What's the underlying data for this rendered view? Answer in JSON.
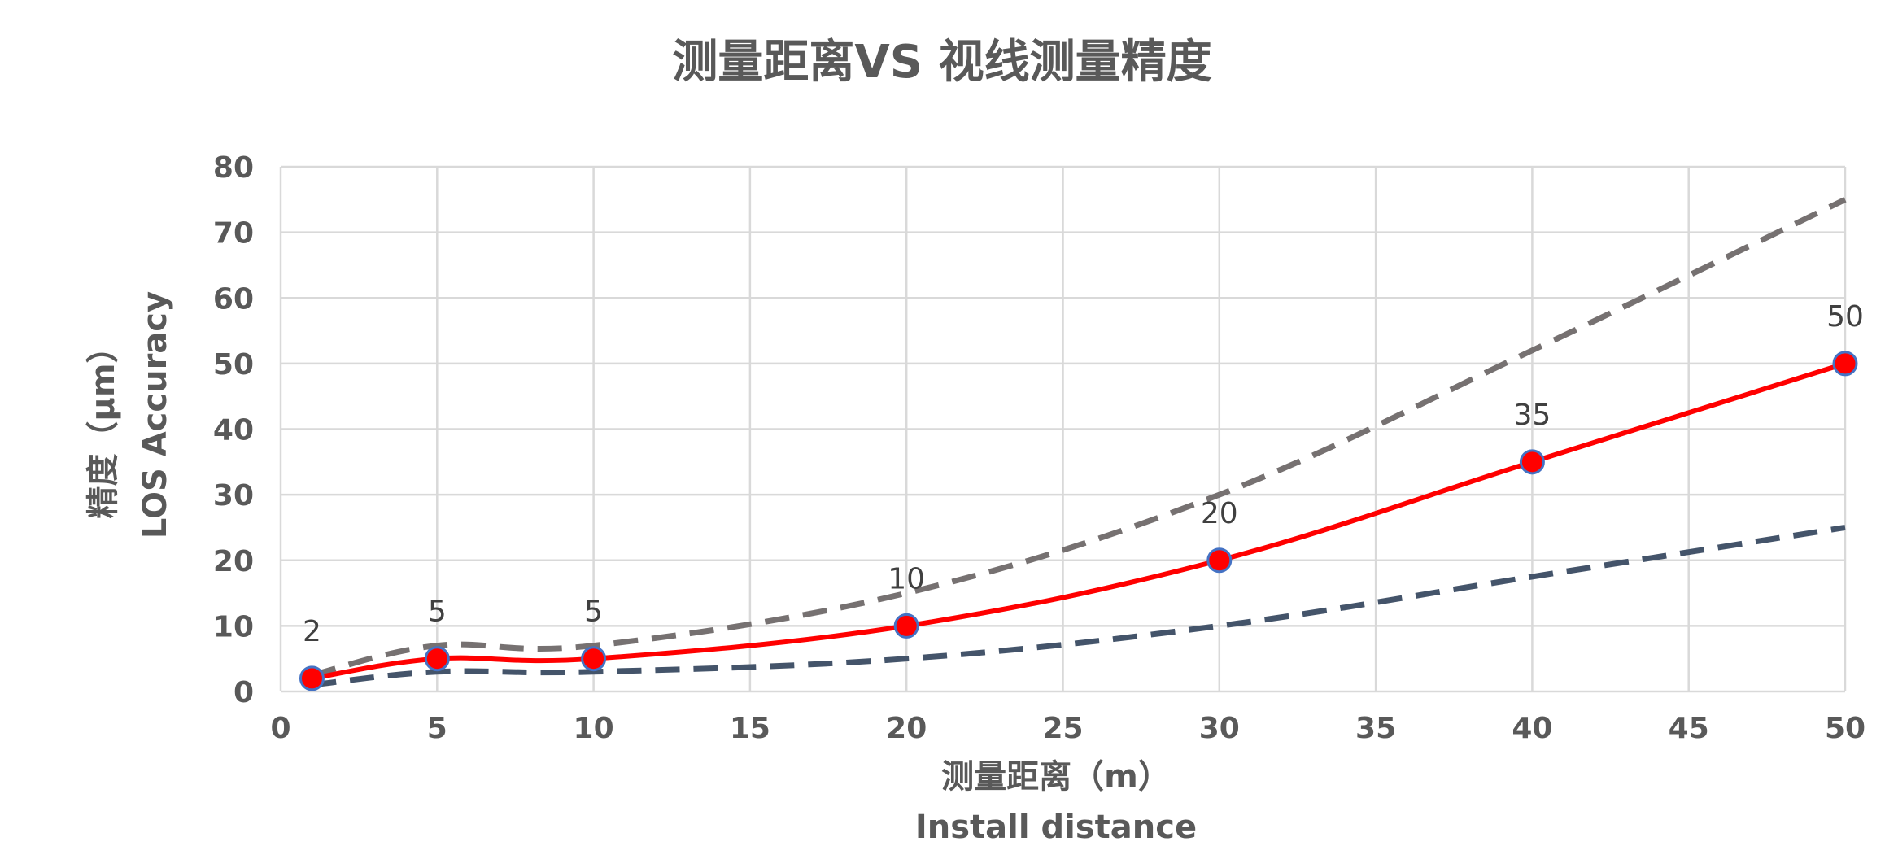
{
  "chart_data": {
    "type": "line",
    "title": "测量距离VS 视线测量精度",
    "xlabel": [
      "测量距离（m）",
      "Install distance"
    ],
    "ylabel": [
      "精度（μm）",
      "LOS Accuracy"
    ],
    "xlim": [
      0,
      50
    ],
    "ylim": [
      0,
      80
    ],
    "x_ticks": [
      0,
      5,
      10,
      15,
      20,
      25,
      30,
      35,
      40,
      45,
      50
    ],
    "y_ticks": [
      0,
      10,
      20,
      30,
      40,
      50,
      60,
      70,
      80
    ],
    "grid": true,
    "legend": "none",
    "series": [
      {
        "style": "dashed",
        "color": "#767171",
        "points": [
          [
            1,
            2.5
          ],
          [
            5,
            7
          ],
          [
            10,
            7
          ],
          [
            20,
            15
          ],
          [
            30,
            30
          ],
          [
            40,
            52
          ],
          [
            50,
            75
          ]
        ]
      },
      {
        "style": "dashed",
        "color": "#44546A",
        "points": [
          [
            1,
            1
          ],
          [
            5,
            3
          ],
          [
            10,
            3
          ],
          [
            20,
            5
          ],
          [
            30,
            10
          ],
          [
            40,
            17.5
          ],
          [
            50,
            25
          ]
        ]
      },
      {
        "style": "solid",
        "color": "#FF0000",
        "marker": "circle",
        "marker_fill": "#FF0000",
        "marker_edge": "#4472C4",
        "data_labels": true,
        "points": [
          [
            1,
            2
          ],
          [
            5,
            5
          ],
          [
            10,
            5
          ],
          [
            20,
            10
          ],
          [
            30,
            20
          ],
          [
            40,
            35
          ],
          [
            50,
            50
          ]
        ]
      }
    ]
  }
}
